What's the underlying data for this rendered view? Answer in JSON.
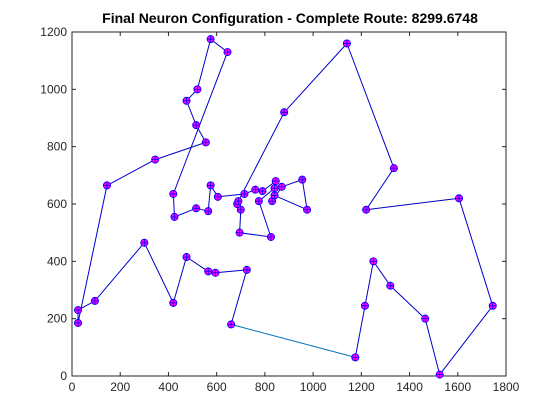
{
  "chart_data": {
    "type": "line",
    "title": "Final Neuron Configuration - Complete Route: 8299.6748",
    "xlabel": "",
    "ylabel": "",
    "xlim": [
      0,
      1800
    ],
    "ylim": [
      0,
      1200
    ],
    "x_ticks": [
      "0",
      "200",
      "400",
      "600",
      "800",
      "1000",
      "1200",
      "1400",
      "1600",
      "1800"
    ],
    "y_ticks": [
      "0",
      "200",
      "400",
      "600",
      "800",
      "1000",
      "1200"
    ],
    "grid": false,
    "colors": {
      "route": "#0000cc",
      "closing_segment": "#0072bd",
      "neuron_fill": "#ff00ff",
      "neuron_edge": "#0000ff"
    },
    "route": [
      [
        660,
        180
      ],
      [
        725,
        370
      ],
      [
        595,
        360
      ],
      [
        565,
        365
      ],
      [
        475,
        415
      ],
      [
        420,
        255
      ],
      [
        300,
        465
      ],
      [
        95,
        262
      ],
      [
        25,
        230
      ],
      [
        25,
        185
      ],
      [
        145,
        665
      ],
      [
        345,
        755
      ],
      [
        555,
        815
      ],
      [
        515,
        875
      ],
      [
        475,
        960
      ],
      [
        520,
        1000
      ],
      [
        575,
        1175
      ],
      [
        645,
        1130
      ],
      [
        420,
        635
      ],
      [
        425,
        555
      ],
      [
        515,
        585
      ],
      [
        565,
        575
      ],
      [
        575,
        665
      ],
      [
        605,
        625
      ],
      [
        715,
        635
      ],
      [
        760,
        650
      ],
      [
        790,
        645
      ],
      [
        845,
        680
      ],
      [
        830,
        610
      ],
      [
        870,
        660
      ],
      [
        955,
        685
      ],
      [
        975,
        580
      ],
      [
        840,
        630
      ],
      [
        840,
        655
      ],
      [
        775,
        610
      ],
      [
        825,
        485
      ],
      [
        695,
        500
      ],
      [
        700,
        580
      ],
      [
        685,
        600
      ],
      [
        690,
        610
      ],
      [
        880,
        920
      ],
      [
        1140,
        1160
      ],
      [
        1335,
        725
      ],
      [
        1220,
        580
      ],
      [
        1605,
        620
      ],
      [
        1745,
        245
      ],
      [
        1525,
        5
      ],
      [
        1465,
        200
      ],
      [
        1320,
        315
      ],
      [
        1250,
        400
      ],
      [
        1215,
        245
      ],
      [
        1175,
        65
      ]
    ]
  }
}
